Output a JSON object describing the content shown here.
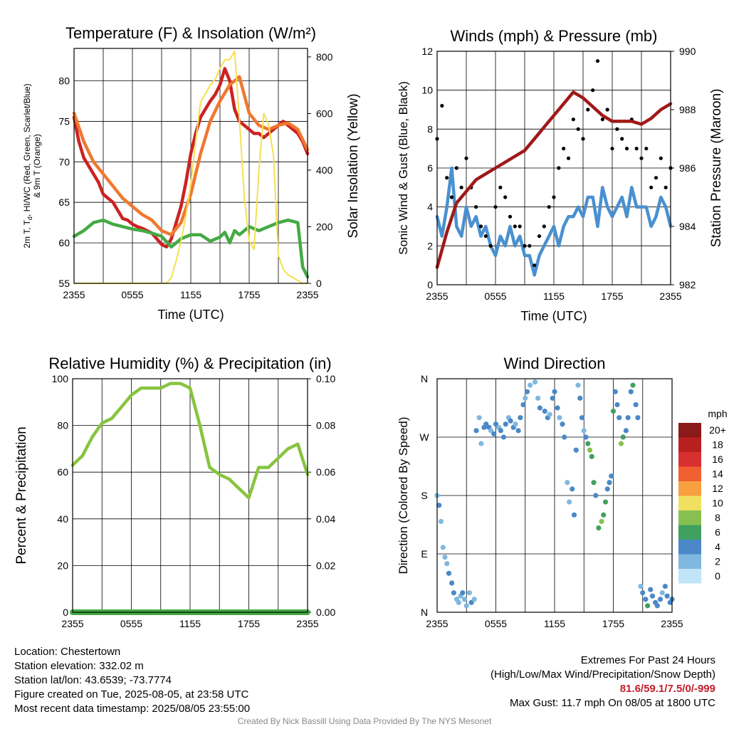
{
  "chart_data": [
    {
      "type": "line",
      "title": "Temperature (F) & Insolation (W/m²)",
      "xlabel": "Time (UTC)",
      "ylabel": "2m T, T_d, HI/WC (Red, Green, Scarlet/Blue) & 9m T (Orange)",
      "ylabel_line1": "2m T, T",
      "ylabel_sub": "d",
      "ylabel_line1b": ", HI/WC (Red, Green, Scarlet/Blue)",
      "ylabel_line2": "& 9m T (Orange)",
      "y2label": "Solar Insolation (Yellow)",
      "x_ticks": [
        "2355",
        "0555",
        "1155",
        "1755",
        "2355"
      ],
      "ylim": [
        55,
        84
      ],
      "y_ticks": [
        55,
        60,
        65,
        70,
        75,
        80
      ],
      "y2lim": [
        0,
        830
      ],
      "y2_ticks": [
        0,
        200,
        400,
        600,
        800
      ],
      "grid": true,
      "series": [
        {
          "name": "2m T",
          "color": "#cc2222",
          "axis": "left",
          "x": [
            0,
            0.5,
            1,
            1.5,
            2,
            2.5,
            3,
            3.5,
            4,
            4.5,
            5,
            5.5,
            6,
            6.5,
            7,
            7.5,
            8,
            8.5,
            9,
            9.5,
            10,
            10.5,
            11,
            11.5,
            12,
            12.5,
            13,
            13.5,
            14,
            14.5,
            15,
            15.5,
            16,
            16.5,
            17,
            17.5,
            18,
            18.5,
            19,
            19.5,
            20,
            20.5,
            21,
            21.5,
            22,
            22.5,
            23,
            23.5,
            24
          ],
          "y": [
            75.5,
            72.5,
            70.5,
            69.5,
            68.5,
            67.5,
            66,
            65.5,
            65,
            64,
            63,
            62.8,
            62.3,
            62,
            61.8,
            61.5,
            61.2,
            60.5,
            59.8,
            59.5,
            60.5,
            62.5,
            64.5,
            67.5,
            71,
            73.5,
            75.5,
            76.5,
            77.5,
            78.3,
            79.5,
            81.5,
            80,
            76.5,
            75,
            74.5,
            74,
            73.5,
            73.5,
            73,
            73.5,
            74,
            74.5,
            75,
            74.5,
            74,
            73.5,
            72.5,
            71
          ]
        },
        {
          "name": "9m T",
          "color": "#f07830",
          "axis": "left",
          "x": [
            0,
            1,
            2,
            3,
            4,
            5,
            6,
            7,
            8,
            9,
            10,
            11,
            12,
            13,
            14,
            15,
            16,
            17,
            18,
            19,
            20,
            21,
            22,
            23,
            24
          ],
          "y": [
            76,
            72.5,
            70,
            68.5,
            67,
            65.5,
            64.5,
            63.5,
            62.8,
            61.5,
            61,
            62.5,
            66,
            71,
            75,
            77.5,
            79.5,
            80.5,
            76,
            74.5,
            74,
            74.5,
            74.8,
            74,
            71.5
          ]
        },
        {
          "name": "Td",
          "color": "#44aa44",
          "axis": "left",
          "x": [
            0,
            1,
            2,
            3,
            4,
            5,
            6,
            7,
            8,
            9,
            10,
            11,
            12,
            13,
            14,
            15,
            15.5,
            16,
            16.5,
            17,
            18,
            19,
            20,
            21,
            22,
            23,
            23.5,
            24
          ],
          "y": [
            60.8,
            61.5,
            62.5,
            62.8,
            62.3,
            62,
            61.7,
            61.5,
            61.2,
            60.8,
            59.5,
            60.5,
            61,
            61,
            60.2,
            60.7,
            61.3,
            60,
            61.5,
            61,
            62,
            61.5,
            62,
            62.5,
            62.8,
            62.5,
            57,
            55.8
          ]
        },
        {
          "name": "Solar Insolation",
          "color": "#f5e050",
          "axis": "right",
          "x": [
            0,
            9.5,
            10,
            10.5,
            11,
            11.5,
            12,
            12.5,
            13,
            13.5,
            14,
            14.5,
            15,
            15.5,
            16,
            16.5,
            17,
            17.5,
            18,
            18.5,
            19,
            19.5,
            20,
            20.5,
            21,
            21.5,
            22,
            22.5,
            23,
            23.5,
            24
          ],
          "y": [
            0,
            0,
            20,
            80,
            150,
            240,
            350,
            500,
            640,
            670,
            700,
            720,
            760,
            790,
            790,
            820,
            580,
            300,
            150,
            120,
            400,
            600,
            560,
            450,
            100,
            50,
            30,
            20,
            10,
            0,
            0
          ]
        }
      ]
    },
    {
      "type": "line",
      "title": "Winds (mph) & Pressure (mb)",
      "xlabel": "Time (UTC)",
      "ylabel": "Sonic Wind & Gust (Blue, Black)",
      "y2label": "Station Pressure (Maroon)",
      "x_ticks": [
        "2355",
        "0555",
        "1155",
        "1755",
        "2355"
      ],
      "ylim": [
        0,
        12
      ],
      "y_ticks": [
        0,
        2,
        4,
        6,
        8,
        10,
        12
      ],
      "y2lim": [
        982,
        990
      ],
      "y2_ticks": [
        982,
        984,
        986,
        988,
        990
      ],
      "grid": true,
      "series": [
        {
          "name": "Sonic Wind",
          "color": "#4a90d0",
          "axis": "left",
          "x": [
            0,
            0.5,
            1,
            1.5,
            2,
            2.5,
            3,
            3.5,
            4,
            4.5,
            5,
            5.5,
            6,
            6.5,
            7,
            7.5,
            8,
            8.5,
            9,
            9.5,
            10,
            10.5,
            11,
            11.5,
            12,
            12.5,
            13,
            13.5,
            14,
            14.5,
            15,
            15.5,
            16,
            16.5,
            17,
            17.5,
            18,
            18.5,
            19,
            19.5,
            20,
            20.5,
            21,
            21.5,
            22,
            22.5,
            23,
            23.5,
            24
          ],
          "y": [
            3.5,
            2.5,
            4,
            6,
            3,
            2.5,
            4,
            3,
            3.5,
            2.5,
            3,
            2,
            1.5,
            2.5,
            2,
            3,
            2,
            2.5,
            1.5,
            1.5,
            0.5,
            1.5,
            2,
            2.5,
            3,
            2,
            3,
            3.5,
            3.5,
            4,
            3.5,
            4.5,
            4.5,
            3,
            5,
            4,
            3.5,
            4,
            4.5,
            3.5,
            5,
            4,
            4,
            4,
            3,
            3.5,
            4.5,
            4,
            3
          ]
        },
        {
          "name": "Gust",
          "color": "#000000",
          "axis": "left",
          "style": "points",
          "x": [
            0,
            0.5,
            1,
            1.5,
            2,
            2.5,
            3,
            3.5,
            4,
            4.5,
            5,
            5.5,
            6,
            6.5,
            7,
            7.5,
            8,
            8.5,
            9,
            9.5,
            10,
            10.5,
            11,
            11.5,
            12,
            12.5,
            13,
            13.5,
            14,
            14.5,
            15,
            15.5,
            16,
            16.5,
            17,
            17.5,
            18,
            18.5,
            19,
            19.5,
            20,
            20.5,
            21,
            21.5,
            22,
            22.5,
            23,
            23.5,
            24
          ],
          "y": [
            7.5,
            9.2,
            5.5,
            4.5,
            6,
            5,
            6.5,
            5,
            4,
            3,
            2.5,
            2,
            4,
            5,
            4.5,
            3.5,
            3,
            3,
            2,
            2,
            1,
            2.5,
            3,
            4,
            4.5,
            6,
            7,
            6.5,
            8.5,
            8,
            7.5,
            9,
            10,
            11.5,
            8.5,
            9,
            7,
            8,
            7.5,
            7,
            8.5,
            7,
            6.5,
            7,
            5,
            5.5,
            6.5,
            5,
            6
          ]
        },
        {
          "name": "Station Pressure",
          "color": "#a01818",
          "axis": "right",
          "x": [
            0,
            1,
            2,
            3,
            4,
            5,
            6,
            7,
            8,
            9,
            10,
            11,
            12,
            13,
            14,
            15,
            16,
            17,
            18,
            19,
            20,
            21,
            22,
            23,
            24
          ],
          "y": [
            982.6,
            983.8,
            984.8,
            985.2,
            985.6,
            985.8,
            986,
            986.2,
            986.4,
            986.6,
            987,
            987.4,
            987.8,
            988.2,
            988.6,
            988.4,
            988.1,
            987.8,
            987.6,
            987.6,
            987.6,
            987.5,
            987.7,
            988,
            988.2
          ]
        }
      ]
    },
    {
      "type": "line",
      "title": "Relative Humidity (%) & Precipitation (in)",
      "xlabel": "",
      "ylabel": "Percent & Precipitation",
      "x_ticks": [
        "2355",
        "0555",
        "1155",
        "1755",
        "2355"
      ],
      "ylim": [
        0,
        100
      ],
      "y_ticks": [
        0,
        20,
        40,
        60,
        80,
        100
      ],
      "y2lim": [
        0,
        0.1
      ],
      "y2_ticks": [
        "0.00",
        "0.02",
        "0.04",
        "0.06",
        "0.08",
        "0.10"
      ],
      "grid": true,
      "series": [
        {
          "name": "Relative Humidity",
          "color": "#88c440",
          "axis": "left",
          "x": [
            0,
            1,
            2,
            3,
            4,
            5,
            6,
            7,
            8,
            9,
            10,
            11,
            12,
            13,
            14,
            15,
            16,
            17,
            18,
            19,
            20,
            21,
            22,
            23,
            24
          ],
          "y": [
            63,
            67,
            75,
            81,
            83,
            88,
            93,
            96,
            96,
            96,
            98,
            98,
            96,
            80,
            62,
            59,
            57,
            53,
            49,
            62,
            62,
            66,
            70,
            72,
            59
          ]
        },
        {
          "name": "Precipitation",
          "color": "#44aa44",
          "axis": "right",
          "x": [
            0,
            24
          ],
          "y": [
            0,
            0
          ]
        }
      ]
    },
    {
      "type": "scatter",
      "title": "Wind Direction",
      "xlabel": "",
      "ylabel": "Direction (Colored By Speed)",
      "x_ticks": [
        "2355",
        "0555",
        "1155",
        "1755",
        "2355"
      ],
      "y_tick_labels": [
        "N",
        "E",
        "S",
        "W",
        "N"
      ],
      "ylim": [
        0,
        360
      ],
      "grid": true,
      "legend": {
        "title": "mph",
        "placement": "right",
        "labels": [
          "20+",
          "18",
          "16",
          "14",
          "12",
          "10",
          "8",
          "6",
          "4",
          "2",
          "0"
        ],
        "colors": [
          "#8b1a1a",
          "#b82020",
          "#d83030",
          "#f06030",
          "#f8a040",
          "#f0e060",
          "#88c050",
          "#40a060",
          "#4a88c8",
          "#80b8e0",
          "#c0e4f8"
        ]
      },
      "series": [
        {
          "name": "Direction",
          "style": "points",
          "x": [
            0,
            0.2,
            0.4,
            0.6,
            0.8,
            1,
            1.2,
            1.5,
            1.7,
            2,
            2.2,
            2.4,
            2.6,
            2.8,
            3,
            3.3,
            3.5,
            3.8,
            4,
            4.3,
            4.5,
            4.8,
            5,
            5.3,
            5.5,
            5.8,
            6,
            6.3,
            6.5,
            6.8,
            7,
            7.3,
            7.5,
            7.8,
            8,
            8.3,
            8.5,
            8.8,
            9,
            9.2,
            9.5,
            10,
            10.3,
            10.5,
            11,
            11.3,
            11.5,
            11.8,
            12,
            12.3,
            12.5,
            12.8,
            13,
            13.3,
            13.5,
            13.8,
            14,
            14.2,
            14.4,
            14.6,
            14.8,
            15,
            15.2,
            15.4,
            15.6,
            15.8,
            16,
            16.2,
            16.5,
            16.8,
            17,
            17.2,
            17.4,
            17.6,
            17.8,
            18,
            18.2,
            18.4,
            18.6,
            18.8,
            19,
            19.3,
            19.5,
            19.8,
            20,
            20.3,
            20.5,
            20.8,
            21,
            21.3,
            21.5,
            21.8,
            22,
            22.3,
            22.5,
            22.8,
            23,
            23.3,
            23.5,
            23.8,
            24
          ],
          "y": [
            180,
            165,
            140,
            100,
            85,
            75,
            60,
            45,
            30,
            20,
            15,
            25,
            30,
            20,
            10,
            30,
            15,
            20,
            280,
            300,
            260,
            285,
            290,
            285,
            280,
            275,
            290,
            285,
            280,
            270,
            290,
            300,
            295,
            285,
            290,
            280,
            300,
            320,
            330,
            340,
            350,
            355,
            330,
            315,
            310,
            300,
            305,
            330,
            340,
            315,
            300,
            290,
            270,
            200,
            170,
            190,
            150,
            250,
            350,
            330,
            300,
            280,
            270,
            260,
            250,
            240,
            200,
            180,
            130,
            140,
            150,
            170,
            190,
            200,
            210,
            310,
            340,
            320,
            300,
            260,
            270,
            280,
            300,
            340,
            350,
            320,
            300,
            40,
            30,
            20,
            10,
            35,
            25,
            15,
            10,
            20,
            30,
            40,
            25,
            15,
            20
          ],
          "speed": [
            2,
            3,
            2,
            2,
            1,
            2,
            3,
            4,
            3,
            2,
            1,
            2,
            3,
            2,
            1,
            2,
            3,
            2,
            3,
            2,
            2,
            3,
            4,
            3,
            2,
            4,
            3,
            2,
            3,
            4,
            3,
            2,
            4,
            3,
            2,
            3,
            4,
            3,
            2,
            4,
            2,
            1,
            2,
            3,
            4,
            3,
            2,
            3,
            4,
            3,
            2,
            4,
            3,
            2,
            1,
            3,
            4,
            3,
            2,
            4,
            3,
            2,
            4,
            6,
            7,
            6,
            5,
            4,
            6,
            7,
            6,
            5,
            4,
            3,
            4,
            6,
            4,
            3,
            4,
            7,
            6,
            4,
            3,
            4,
            6,
            4,
            3,
            2,
            3,
            4,
            5,
            3,
            4,
            3,
            4,
            3,
            2,
            4,
            3,
            4,
            3
          ]
        }
      ]
    }
  ],
  "info": {
    "location": "Location: Chestertown",
    "elevation": "Station elevation: 332.02 m",
    "latlon": "Station lat/lon: 43.6539; -73.7774",
    "created": "Figure created on Tue, 2025-08-05, at 23:58 UTC",
    "recent": "Most recent data timestamp: 2025/08/05 23:55:00"
  },
  "extremes": {
    "title": "Extremes For Past 24 Hours",
    "subtitle": "(High/Low/Max Wind/Precipitation/Snow Depth)",
    "values": "81.6/59.1/7.5/0/-999",
    "gust": "Max Gust: 11.7 mph On 08/05 at 1800 UTC"
  },
  "credit": "Created By Nick Bassill Using Data Provided By The NYS Mesonet"
}
